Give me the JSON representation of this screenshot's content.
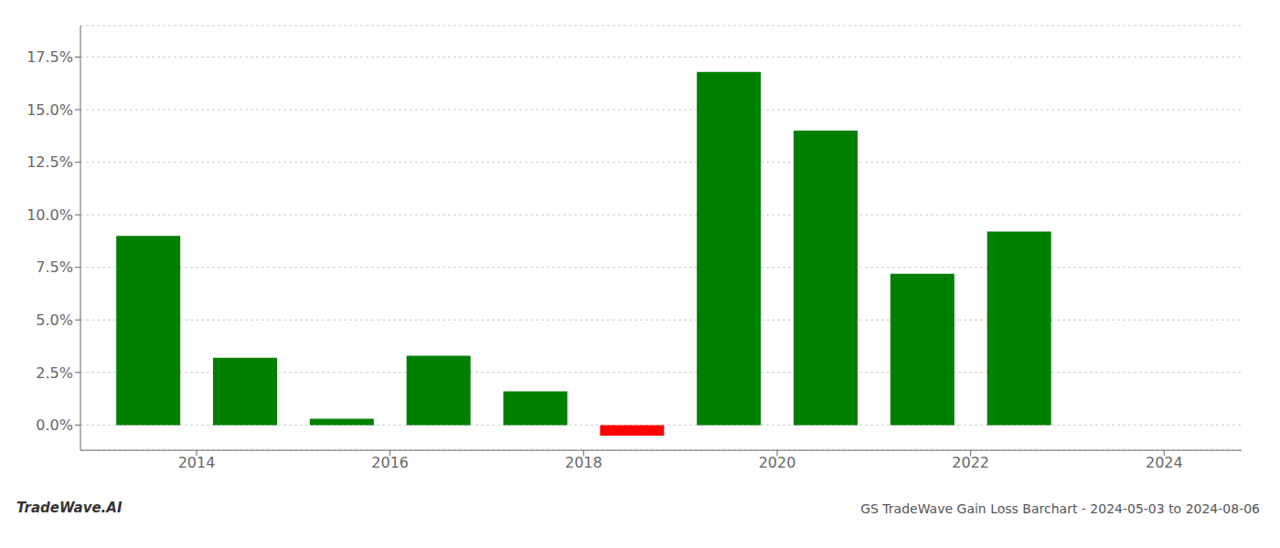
{
  "chart_data": {
    "type": "bar",
    "title": "GS TradeWave Gain Loss Barchart - 2024-05-03 to 2024-08-06",
    "annotations": [
      "TradeWave.AI"
    ],
    "x": [
      2013.5,
      2014.5,
      2015.5,
      2016.5,
      2017.5,
      2018.5,
      2019.5,
      2020.5,
      2021.5,
      2022.5
    ],
    "values": [
      0.09,
      0.032,
      0.003,
      0.033,
      0.016,
      -0.005,
      0.168,
      0.14,
      0.072,
      0.092
    ],
    "colors": [
      "#008000",
      "#008000",
      "#008000",
      "#008000",
      "#008000",
      "#ff0000",
      "#008000",
      "#008000",
      "#008000",
      "#008000"
    ],
    "xlim": [
      2012.8,
      2024.8
    ],
    "xticks": [
      2014,
      2016,
      2018,
      2020,
      2022,
      2024
    ],
    "ylim": [
      -0.012,
      0.19
    ],
    "yticks": [
      {
        "value": 0.0,
        "label": "0.0%"
      },
      {
        "value": 0.025,
        "label": "2.5%"
      },
      {
        "value": 0.05,
        "label": "5.0%"
      },
      {
        "value": 0.075,
        "label": "7.5%"
      },
      {
        "value": 0.1,
        "label": "10.0%"
      },
      {
        "value": 0.125,
        "label": "12.5%"
      },
      {
        "value": 0.15,
        "label": "15.0%"
      },
      {
        "value": 0.175,
        "label": "17.5%"
      }
    ],
    "grid": true
  }
}
